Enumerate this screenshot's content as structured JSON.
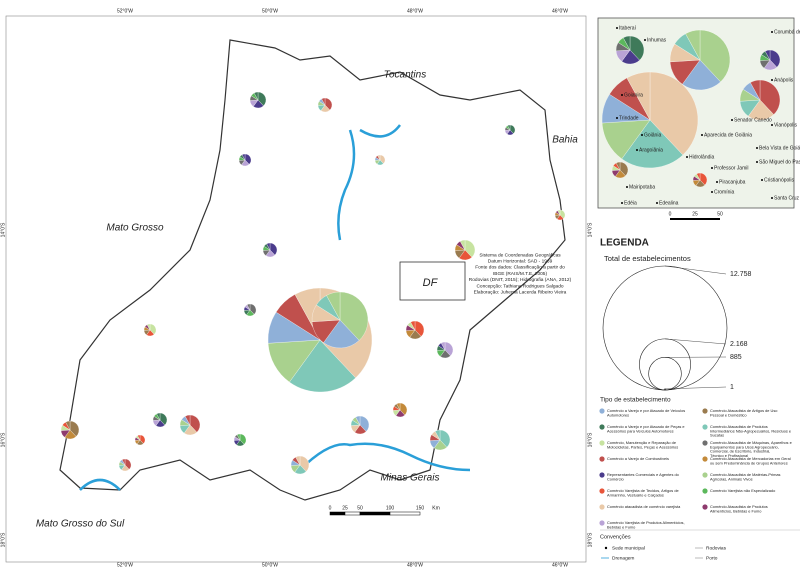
{
  "map": {
    "graticule": {
      "longitudes": [
        "52°0'W",
        "50°0'W",
        "48°0'W",
        "46°0'W"
      ],
      "latitudes": [
        "14°0'S",
        "16°0'S",
        "18°0'S"
      ]
    },
    "regions": [
      "Tocantins",
      "Bahia",
      "Mato Grosso",
      "DF",
      "Minas Gerais",
      "Mato Grosso do Sul"
    ],
    "credits": [
      "Sistema de Coordenadas Geográficas",
      "Datum Horizontal: SAD - 1969",
      "Fonte dos dados: Classificação a partir do",
      "IBGE (RAIS/M.T.E, 2005)",
      "Rodovias (DNIT, 2015); Hidrografia (ANA, 2012)",
      "Concepção: Tathiana Rodrigues Salgado",
      "Elaboração: Juhema Lacerda Ribeiro Vieira"
    ],
    "scale": [
      "0",
      "25",
      "50",
      "100",
      "150",
      "Km"
    ]
  },
  "inset": {
    "places": [
      "Itaberaí",
      "Inhumas",
      "Anápolis",
      "Goianira",
      "Trindade",
      "Goiânia",
      "Senador Canedo",
      "Aparecida de Goiânia",
      "Bela Vista de Goiás",
      "Hidrolândia",
      "Aragoiânia",
      "Piracanjuba",
      "Professor Jamil",
      "Cromínia",
      "Mairipotaba",
      "Edéia",
      "Edealina",
      "Vianópolis",
      "São Miguel do Passa Quatro",
      "Cristianópolis",
      "Santa Cruz de Goiás",
      "Corumbá de Goiás"
    ],
    "scale": [
      "0",
      "25",
      "50"
    ]
  },
  "legend": {
    "title": "LEGENDA",
    "size_title": "Total de estabelecimentos",
    "sizes": [
      {
        "value": 12758,
        "label": "12.758"
      },
      {
        "value": 2168,
        "label": "2.168"
      },
      885,
      1
    ],
    "type_title": "Tipo de estabelecimento",
    "types": [
      {
        "label": "Comércio a Varejo e por Atacado de Veículos Automotores",
        "color": "#8fb0d8"
      },
      {
        "label": "Comércio a Varejo e por Atacado de Peças e Acessórios para Veículos Automotores",
        "color": "#3f7a5a"
      },
      {
        "label": "Comércio, Manutenção e Reparação de Motocicletas, Partes, Peças e Acessórios",
        "color": "#c7e3a0"
      },
      {
        "label": "Comércio a Varejo de Combustíveis",
        "color": "#c0504d"
      },
      {
        "label": "Representantes Comerciais e Agentes do Comércio",
        "color": "#4b3c8c"
      },
      {
        "label": "Comércio Varejista de Tecidos, Artigos de Armarinho, Vestuário e Calçados",
        "color": "#e8553a"
      },
      {
        "label": "Comércio atacadista de comércio varejista",
        "color": "#e9c9a8"
      },
      {
        "label": "Comércio Varejista de Produtos Alimentícios, Bebidas e Fumo",
        "color": "#b9a3d6"
      },
      {
        "label": "Comércio Atacadista de Artigos de Uso Pessoal e Doméstico",
        "color": "#9a7b4f"
      },
      {
        "label": "Comércio Atacadista de Produtos Intermediários Não-Agropecuários, Resíduos e Sucatas",
        "color": "#7fc8b8"
      },
      {
        "label": "Comércio Atacadista de Máquinas, Aparelhos e Equipamentos para Usos Agropecuário, Comercial, de Escritório, Industrial, Técnico e Profissional",
        "color": "#6f6f6f"
      },
      {
        "label": "Comércio Atacadista de Mercadorias em Geral ou sem Predominância de Grupos Anteriores",
        "color": "#c38a3a"
      },
      {
        "label": "Comércio Atacadista de Matérias-Primas Agrícolas, Animais Vivos",
        "color": "#a9d18e"
      },
      {
        "label": "Comércio Varejista não Especializado",
        "color": "#5cb85c"
      },
      {
        "label": "Comércio Atacadista de Produtos Alimentícios, Bebidas e Fumo",
        "color": "#8e3b6e"
      }
    ],
    "conventions_title": "Convenções",
    "conventions": [
      "Sede municipal",
      "Rodovias",
      "Drenagem",
      "Porto"
    ]
  }
}
